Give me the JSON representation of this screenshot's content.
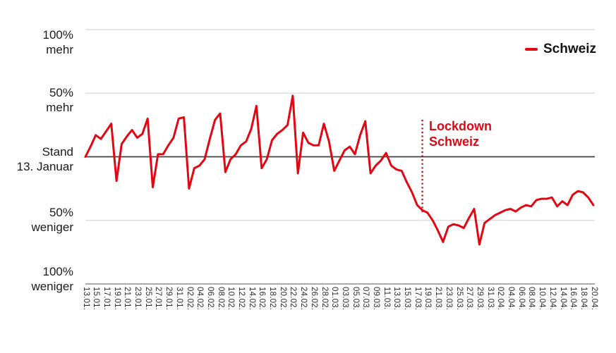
{
  "colors": {
    "line_red": "#e30613",
    "gridline": "#d9d9d9",
    "zero_line": "#404040",
    "axis_line": "#8f8f8f",
    "label_text": "#1a1a1a",
    "tick_text": "#2d2d2d"
  },
  "legend": {
    "label": "Schweiz"
  },
  "chart_data": {
    "type": "line",
    "title": "",
    "xlabel": "",
    "ylabel": "",
    "ylim": [
      -100,
      100
    ],
    "grid": true,
    "legend_position": "top-right",
    "baseline_label": "Stand 13. Januar",
    "y_ticks": [
      {
        "value": 100,
        "lines": [
          "100%",
          "mehr"
        ]
      },
      {
        "value": 50,
        "lines": [
          "50%",
          "mehr"
        ]
      },
      {
        "value": 0,
        "lines": [
          "Stand",
          "13. Januar"
        ]
      },
      {
        "value": -50,
        "lines": [
          "50%",
          "weniger"
        ]
      },
      {
        "value": -100,
        "lines": [
          "100%",
          "weniger"
        ]
      }
    ],
    "x_tick_labels": [
      "13.01.",
      "15.01.",
      "17.01.",
      "19.01.",
      "21.01.",
      "23.01.",
      "25.01.",
      "27.01.",
      "29.01.",
      "31.01.",
      "02.02.",
      "04.02.",
      "06.02.",
      "08.02.",
      "10.02.",
      "12.02.",
      "14.02.",
      "16.02.",
      "18.02.",
      "20.02.",
      "22.02.",
      "24.02.",
      "26.02.",
      "28.02.",
      "01.03.",
      "03.03.",
      "05.03.",
      "07.03.",
      "09.03.",
      "11.03.",
      "13.03.",
      "15.03.",
      "17.03.",
      "19.03.",
      "21.03.",
      "23.03.",
      "25.03.",
      "27.03.",
      "29.03.",
      "31.03.",
      "02.04.",
      "04.04.",
      "06.04.",
      "08.04.",
      "10.04.",
      "12.04.",
      "14.04.",
      "16.04.",
      "18.04.",
      "20.04."
    ],
    "x_tick_every_n_days": 2,
    "series": [
      {
        "name": "Schweiz",
        "unit": "% vs. Stand 13. Januar",
        "values": [
          0,
          8,
          17,
          14,
          20,
          26,
          -19,
          10,
          16,
          21,
          15,
          18,
          30,
          -24,
          2,
          2,
          9,
          15,
          30,
          31,
          -25,
          -9,
          -7,
          -2,
          14,
          29,
          34,
          -12,
          -2,
          2,
          9,
          12,
          22,
          40,
          -9,
          -2,
          13,
          18,
          21,
          25,
          48,
          -13,
          19,
          11,
          9,
          9,
          26,
          12,
          -11,
          -3,
          5,
          8,
          2,
          17,
          28,
          -13,
          -7,
          -3,
          3,
          -7,
          -10,
          -11,
          -20,
          -28,
          -38,
          -42,
          -44,
          -50,
          -58,
          -67,
          -55,
          -53,
          -54,
          -56,
          -48,
          -41,
          -69,
          -52,
          -49,
          -46,
          -44,
          -42,
          -41,
          -43,
          -40,
          -38,
          -39,
          -34,
          -33,
          -33,
          -32,
          -39,
          -35,
          -38,
          -30,
          -27,
          -28,
          -32,
          -38
        ]
      }
    ],
    "annotation": {
      "label_lines": [
        "Lockdown",
        "Schweiz"
      ],
      "day_index": 65,
      "style": "dotted-vertical-line"
    }
  }
}
